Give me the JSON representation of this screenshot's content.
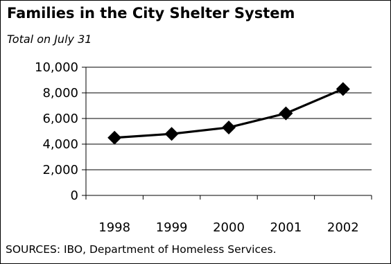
{
  "chart_data": {
    "type": "line",
    "title": "Families in the City Shelter System",
    "subtitle": "Total on July 31",
    "source": "SOURCES: IBO, Department of Homeless Services.",
    "categories": [
      "1998",
      "1999",
      "2000",
      "2001",
      "2002"
    ],
    "series": [
      {
        "values": [
          4500,
          4800,
          5300,
          6400,
          8300
        ]
      }
    ],
    "ylim": [
      0,
      10000
    ],
    "yticks": [
      0,
      2000,
      4000,
      6000,
      8000,
      10000
    ],
    "ytick_labels": [
      "0",
      "2,000",
      "4,000",
      "6,000",
      "8,000",
      "10,000"
    ],
    "grid": "horizontal",
    "marker": "diamond",
    "colors": {
      "line": "#000000",
      "grid": "#000000",
      "background": "#ffffff"
    }
  }
}
